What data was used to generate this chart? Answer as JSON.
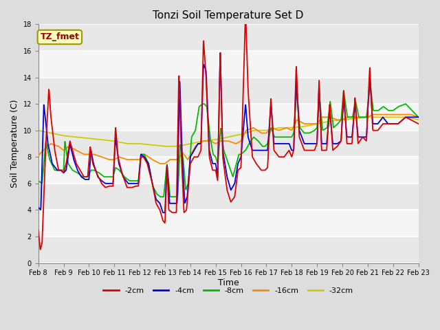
{
  "title": "Tonzi Soil Temperature Set D",
  "xlabel": "Time",
  "ylabel": "Soil Temperature (C)",
  "n_days": 15,
  "ylim": [
    0,
    18
  ],
  "yticks": [
    0,
    2,
    4,
    6,
    8,
    10,
    12,
    14,
    16,
    18
  ],
  "x_tick_labels": [
    "Feb 8",
    "Feb 9",
    "Feb 10",
    "Feb 11",
    "Feb 12",
    "Feb 13",
    "Feb 14",
    "Feb 15",
    "Feb 16",
    "Feb 17",
    "Feb 18",
    "Feb 19",
    "Feb 20",
    "Feb 21",
    "Feb 22",
    "Feb 23"
  ],
  "series_colors": {
    "-2cm": "#dd0000",
    "-4cm": "#0000dd",
    "-8cm": "#00bb00",
    "-16cm": "#ff8800",
    "-32cm": "#cccc00"
  },
  "legend_labels": [
    "-2cm",
    "-4cm",
    "-8cm",
    "-16cm",
    "-32cm"
  ],
  "annotation_text": "TZ_fmet",
  "annotation_color": "#990000",
  "annotation_bg": "#ffffbb",
  "annotation_edge": "#999900",
  "band_colors": [
    "#e8e8e8",
    "#f5f5f5"
  ],
  "title_fontsize": 11,
  "tick_fontsize": 7,
  "ylabel_fontsize": 9,
  "xlabel_fontsize": 9,
  "legend_fontsize": 8,
  "linewidth": 1.3,
  "figwidth": 6.4,
  "figheight": 4.8,
  "dpi": 100
}
